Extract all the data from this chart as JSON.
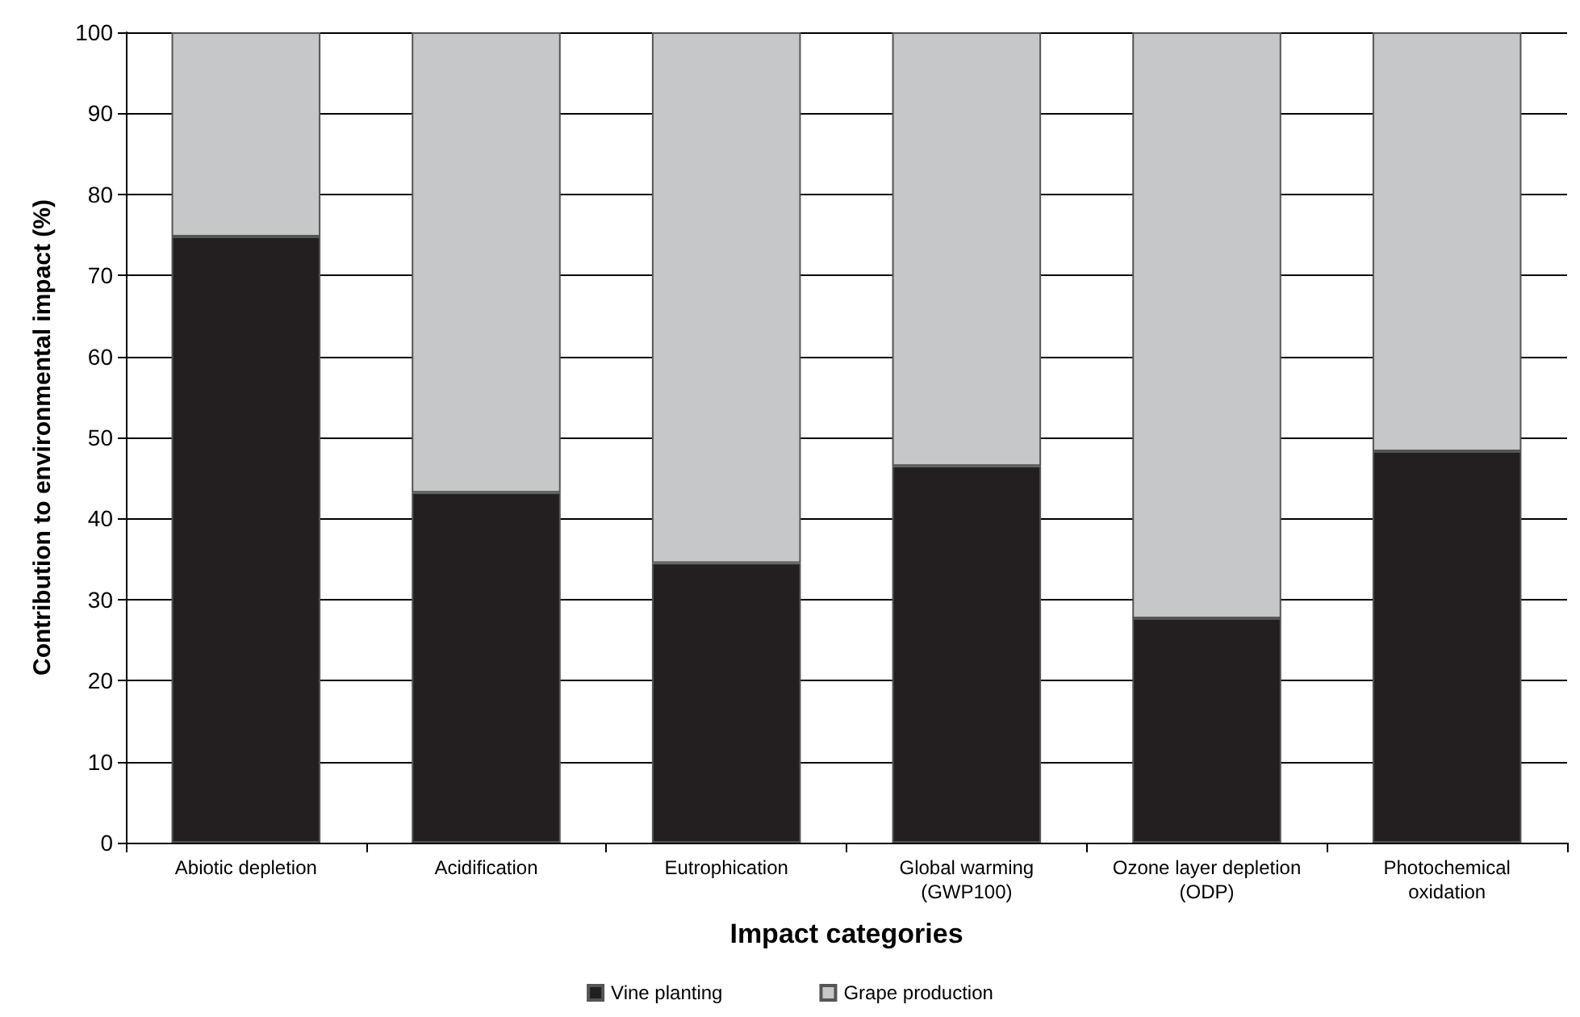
{
  "chart_data": {
    "type": "bar",
    "stacked": true,
    "xlabel": "Impact categories",
    "ylabel": "Contribution to environmental impact (%)",
    "categories": [
      "Abiotic depletion",
      "Acidification",
      "Eutrophication",
      "Global warming\n(GWP100)",
      "Ozone layer depletion\n(ODP)",
      "Photochemical\noxidation"
    ],
    "series": [
      {
        "name": "Vine planting",
        "color": "#231f20",
        "values": [
          74.8,
          43.2,
          34.5,
          46.5,
          27.7,
          48.3
        ]
      },
      {
        "name": "Grape production",
        "color": "#c6c7c9",
        "values": [
          25.2,
          56.8,
          65.5,
          53.5,
          72.3,
          51.7
        ]
      }
    ],
    "ylim": [
      0,
      100
    ],
    "yticks": [
      0,
      10,
      20,
      30,
      40,
      50,
      60,
      70,
      80,
      90,
      100
    ],
    "grid": "y",
    "legend": "bottom"
  }
}
